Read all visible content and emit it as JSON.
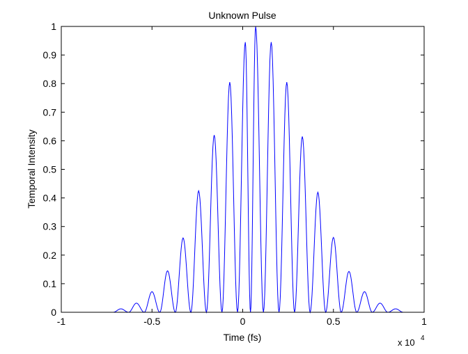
{
  "chart_data": {
    "type": "line",
    "title": "Unknown Pulse",
    "xlabel": "Time (fs)",
    "ylabel": "Temporal Intensity",
    "xlim": [
      -1,
      1
    ],
    "ylim": [
      0,
      1
    ],
    "x_multiplier_label": "x 10",
    "x_multiplier_exponent": "4",
    "x_ticks": [
      "-1",
      "-0.5",
      "0",
      "0.5",
      "1"
    ],
    "y_ticks": [
      "0",
      "0.1",
      "0.2",
      "0.3",
      "0.4",
      "0.5",
      "0.6",
      "0.7",
      "0.8",
      "0.9",
      "1"
    ],
    "grid": false,
    "line_color": "#0000ff",
    "series": [
      {
        "x": [
          -0.6714,
          -0.5857,
          -0.5,
          -0.4143,
          -0.3286,
          -0.2429,
          -0.1571,
          -0.0714,
          0.0143,
          0.0714,
          0.1571,
          0.2429,
          0.3286,
          0.4143,
          0.5,
          0.5857,
          0.6714,
          0.7571,
          0.8429
        ],
        "y": [
          0.012,
          0.032,
          0.072,
          0.145,
          0.26,
          0.425,
          0.62,
          0.805,
          0.945,
          1.0,
          0.945,
          0.805,
          0.615,
          0.42,
          0.262,
          0.143,
          0.072,
          0.032,
          0.012
        ]
      }
    ]
  }
}
